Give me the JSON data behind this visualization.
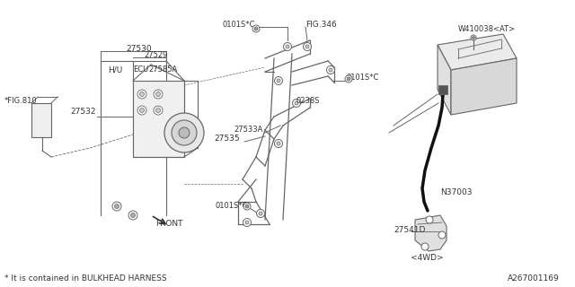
{
  "bg_color": "#ffffff",
  "line_color": "#666666",
  "dark_color": "#333333",
  "footnote": "* It is contained in BULKHEAD HARNESS",
  "diagram_id": "A267001169",
  "fig810": "*FIG.810",
  "fig346": "FIG.346",
  "l27530": "27530",
  "l27529": "27529",
  "l27532": "27532",
  "lHU": "H/U",
  "lECU": "ECU",
  "l27585A": "27585A",
  "l0101SC_top": "0101S*C",
  "l0101SC_mid": "0101S*C",
  "l0101SC_bot": "0101S*C",
  "l0238S": "0238S",
  "l27533A": "27533A",
  "l27535": "27535",
  "lW410038": "W410038<AT>",
  "lN37003": "N37003",
  "l27541D": "27541D",
  "l4WD": "<4WD>",
  "lFRONT": "FRONT"
}
